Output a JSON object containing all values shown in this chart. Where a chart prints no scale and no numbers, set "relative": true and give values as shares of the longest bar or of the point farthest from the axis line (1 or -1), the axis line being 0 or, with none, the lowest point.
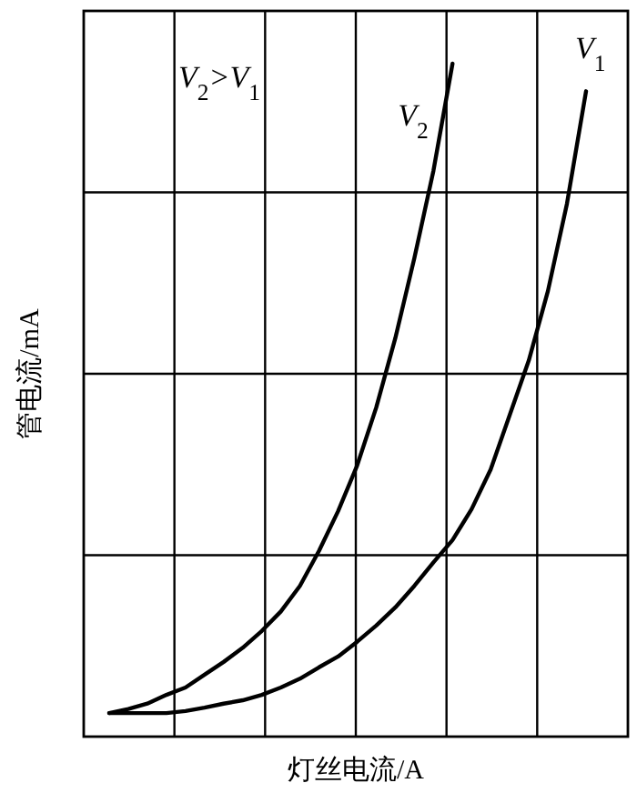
{
  "chart_data": {
    "type": "line",
    "relative": true,
    "xlabel": "灯丝电流/A",
    "ylabel": "管电流/mA",
    "grid": true,
    "marker": "none",
    "line_style": "solid",
    "categories": [
      null,
      null,
      null,
      null,
      null,
      null,
      null,
      null,
      null,
      null,
      null,
      null,
      null,
      null,
      null,
      null,
      null,
      null,
      null,
      null,
      null,
      null,
      null,
      null,
      null,
      null
    ],
    "series": [
      {
        "name": "V$_{1}$",
        "color": "#000000",
        "values": [
          0.035,
          0.035,
          0.035,
          0.035,
          0.038,
          0.043,
          0.049,
          0.054,
          0.062,
          0.073,
          0.086,
          0.103,
          0.119,
          0.141,
          0.165,
          0.192,
          0.224,
          0.259,
          0.292,
          0.338,
          0.397,
          0.478,
          0.559,
          0.662,
          0.792,
          0.959
        ]
      },
      {
        "name": "V$_{2}$",
        "color": "#000000",
        "values": [
          0.035,
          0.041,
          0.049,
          0.062,
          0.073,
          0.092,
          0.111,
          0.132,
          0.157,
          0.186,
          0.224,
          0.276,
          0.335,
          0.403,
          0.489,
          0.592,
          0.711,
          0.841,
          1,
          null,
          null,
          null,
          null,
          null,
          null,
          null
        ]
      }
    ],
    "annotations": [
      "V$_{2}$>V$_{1}$"
    ]
  }
}
